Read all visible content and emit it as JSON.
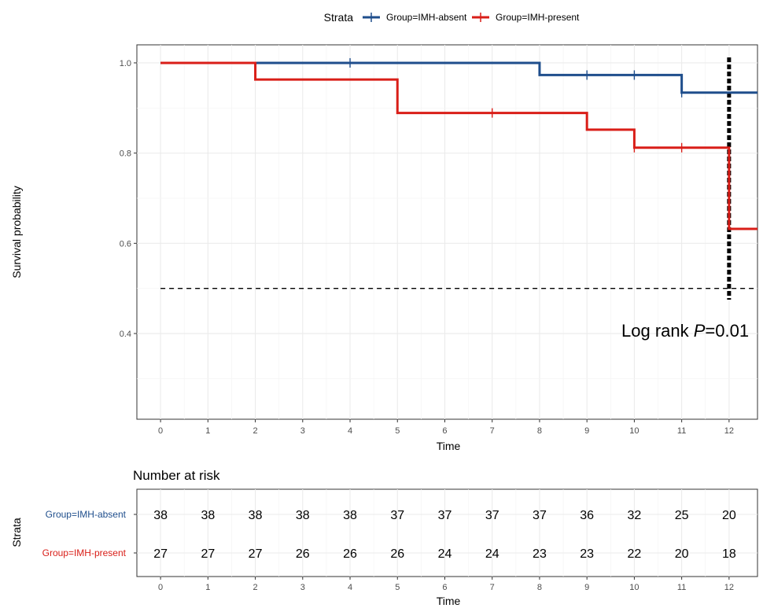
{
  "chart_data": {
    "type": "line",
    "subtype": "kaplan-meier-step",
    "legend": {
      "title": "Strata",
      "placement": "top"
    },
    "x": [
      0,
      1,
      2,
      3,
      4,
      5,
      6,
      7,
      8,
      9,
      10,
      11,
      12
    ],
    "xlabel": "Time",
    "ylabel": "Survival probability",
    "xlim": [
      -0.5,
      12.6
    ],
    "ylim": [
      0.21,
      1.04
    ],
    "x_ticks": [
      "0",
      "1",
      "2",
      "3",
      "4",
      "5",
      "6",
      "7",
      "8",
      "9",
      "10",
      "11",
      "12"
    ],
    "y_ticks": [
      {
        "value": 0.4,
        "label": "0.4"
      },
      {
        "value": 0.6,
        "label": "0.6"
      },
      {
        "value": 0.8,
        "label": "0.8"
      },
      {
        "value": 1.0,
        "label": "1.0"
      }
    ],
    "grid": true,
    "series": [
      {
        "name": "Group=IMH-absent",
        "color": "#1f4e8c",
        "steps": [
          [
            0,
            1.0
          ],
          [
            8,
            0.973
          ],
          [
            11,
            0.934
          ],
          [
            12.6,
            0.934
          ]
        ],
        "censor_times": [
          [
            4,
            1.0
          ],
          [
            9,
            0.973
          ],
          [
            10,
            0.973
          ],
          [
            11,
            0.934
          ]
        ]
      },
      {
        "name": "Group=IMH-present",
        "color": "#d91e18",
        "steps": [
          [
            0,
            1.0
          ],
          [
            2,
            0.963
          ],
          [
            5,
            0.889
          ],
          [
            9,
            0.852
          ],
          [
            10,
            0.812
          ],
          [
            12,
            0.632
          ],
          [
            12.6,
            0.632
          ]
        ],
        "censor_times": [
          [
            7,
            0.889
          ],
          [
            10,
            0.812
          ],
          [
            11,
            0.812
          ]
        ]
      }
    ],
    "reference_lines": {
      "median_y": 0.5,
      "median_x": 12
    },
    "annotation": {
      "prefix": "Log rank ",
      "p_symbol": "P",
      "suffix": "=0.01"
    }
  },
  "risk_table": {
    "title": "Number at risk",
    "ylabel": "Strata",
    "xlabel": "Time",
    "rows": [
      {
        "label": "Group=IMH-absent",
        "color": "#1f4e8c",
        "values": [
          "38",
          "38",
          "38",
          "38",
          "38",
          "37",
          "37",
          "37",
          "37",
          "36",
          "32",
          "25",
          "20"
        ]
      },
      {
        "label": "Group=IMH-present",
        "color": "#d91e18",
        "values": [
          "27",
          "27",
          "27",
          "26",
          "26",
          "26",
          "24",
          "24",
          "23",
          "23",
          "22",
          "20",
          "18"
        ]
      }
    ]
  }
}
